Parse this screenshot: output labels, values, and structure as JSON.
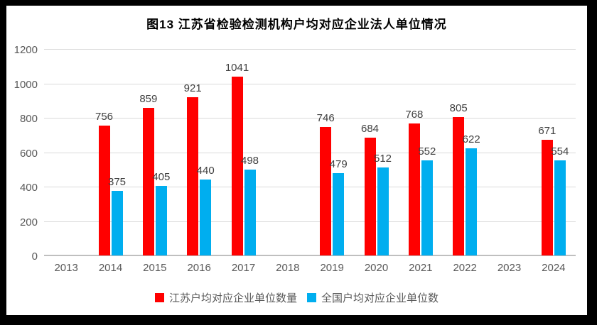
{
  "chart_data": {
    "type": "bar",
    "title": "图13  江苏省检验检测机构户均对应企业法人单位情况",
    "categories": [
      "2013",
      "2014",
      "2015",
      "2016",
      "2017",
      "2018",
      "2019",
      "2020",
      "2021",
      "2022",
      "2023",
      "2024"
    ],
    "series": [
      {
        "name": "江苏户均对应企业单位数量",
        "color": "#ff0000",
        "values": [
          null,
          756,
          859,
          921,
          1041,
          null,
          746,
          684,
          768,
          805,
          null,
          671
        ]
      },
      {
        "name": "全国户均对应企业单位数",
        "color": "#00aeef",
        "values": [
          null,
          375,
          405,
          440,
          498,
          null,
          479,
          512,
          552,
          622,
          null,
          554
        ]
      }
    ],
    "ylim": [
      0,
      1200
    ],
    "yticks": [
      0,
      200,
      400,
      600,
      800,
      1000,
      1200
    ],
    "grid": true,
    "legend_position": "bottom",
    "data_labels": true,
    "colors": {
      "gridline": "#d9d9d9",
      "axis_line": "#bfbfbf",
      "tick_label": "#595959",
      "value_label": "#404040",
      "frame": "#000000",
      "background": "#ffffff"
    }
  }
}
